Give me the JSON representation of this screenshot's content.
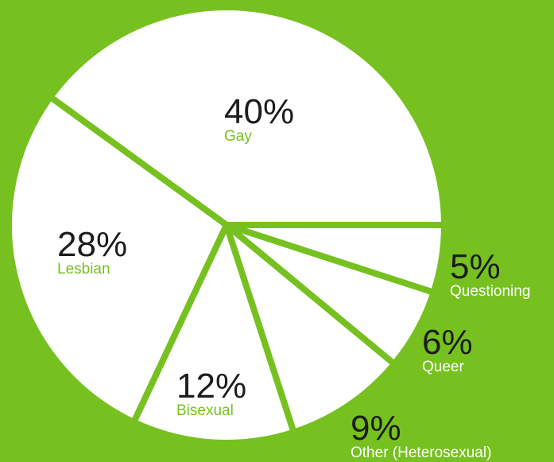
{
  "chart_data": {
    "type": "pie",
    "categories": [
      "Gay",
      "Lesbian",
      "Bisexual",
      "Other (Heterosexual)",
      "Queer",
      "Questioning"
    ],
    "values": [
      40,
      28,
      12,
      9,
      6,
      5
    ],
    "value_labels": [
      "40%",
      "28%",
      "12%",
      "9%",
      "6%",
      "5%"
    ],
    "color": "#ffffff"
  }
}
